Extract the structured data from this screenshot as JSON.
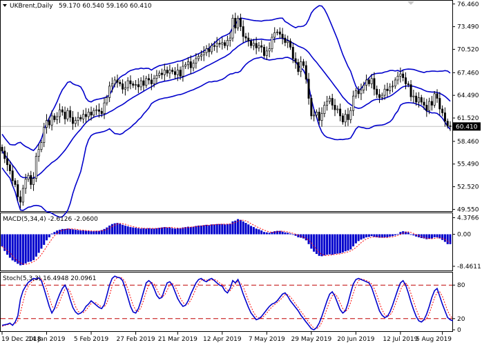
{
  "header": {
    "symbol": "UKBrent,Daily",
    "ohlc": "59.170 60.540 59.160 60.410"
  },
  "current_price_label": "60.410",
  "colors": {
    "band": "#0000cc",
    "candle": "#000000",
    "macd_hist": "#0000cc",
    "macd_signal": "#ff0000",
    "stoch_main": "#0000cc",
    "stoch_signal": "#ff0000",
    "level_line": "#c00000",
    "price_line": "#c0c0c0"
  },
  "chart_data": [
    {
      "type": "candlestick",
      "pane": "price",
      "title": "",
      "ylim": [
        49.5,
        76.8
      ],
      "y_ticks": [
        "76.460",
        "73.490",
        "70.520",
        "67.460",
        "64.490",
        "61.520",
        "58.460",
        "55.490",
        "52.520",
        "49.550"
      ],
      "x_ticks": [
        "19 Dec 2018",
        "14 Jan 2019",
        "5 Feb 2019",
        "27 Feb 2019",
        "21 Mar 2019",
        "12 Apr 2019",
        "7 May 2019",
        "29 May 2019",
        "20 Jun 2019",
        "12 Jul 2019",
        "5 Aug 2019"
      ],
      "last_price": 60.41,
      "closes": [
        57.2,
        56.2,
        55.4,
        54.6,
        53.3,
        52.8,
        51.2,
        50.5,
        52.3,
        53.5,
        54.0,
        52.8,
        53.6,
        56.5,
        57.4,
        58.3,
        60.3,
        61.2,
        60.6,
        61.8,
        61.3,
        61.7,
        62.6,
        62.3,
        61.4,
        62.5,
        61.6,
        60.8,
        61.2,
        61.6,
        61.4,
        62.0,
        61.7,
        62.3,
        61.9,
        62.5,
        62.6,
        62.4,
        62.1,
        63.5,
        64.2,
        65.7,
        66.0,
        66.5,
        66.2,
        66.0,
        65.3,
        65.5,
        66.4,
        66.0,
        65.8,
        65.9,
        65.6,
        66.4,
        65.8,
        66.7,
        66.5,
        66.0,
        66.7,
        67.1,
        67.4,
        67.2,
        67.8,
        67.4,
        67.8,
        67.6,
        67.2,
        67.8,
        67.0,
        68.3,
        68.5,
        68.9,
        68.1,
        68.7,
        69.3,
        69.6,
        69.8,
        70.1,
        70.6,
        70.2,
        71.0,
        70.9,
        71.3,
        71.2,
        71.4,
        71.0,
        71.7,
        72.0,
        74.6,
        73.3,
        74.6,
        73.5,
        72.2,
        72.0,
        71.6,
        71.0,
        71.3,
        70.7,
        71.0,
        70.8,
        69.7,
        70.3,
        70.6,
        72.1,
        72.7,
        72.8,
        72.5,
        72.0,
        71.4,
        71.6,
        70.8,
        69.3,
        68.8,
        67.6,
        68.9,
        68.4,
        66.6,
        64.1,
        61.8,
        61.9,
        62.3,
        61.2,
        62.1,
        63.2,
        63.7,
        64.1,
        63.2,
        62.6,
        62.7,
        61.8,
        61.0,
        62.0,
        61.3,
        62.5,
        64.4,
        65.1,
        64.7,
        65.2,
        65.8,
        66.5,
        66.0,
        66.7,
        65.3,
        64.6,
        64.2,
        64.5,
        65.3,
        65.1,
        65.6,
        65.7,
        66.5,
        67.0,
        67.3,
        66.8,
        66.0,
        65.9,
        64.3,
        64.4,
        63.6,
        64.2,
        63.6,
        63.2,
        62.5,
        63.7,
        63.2,
        64.7,
        64.1,
        62.7,
        62.2,
        61.1,
        60.5,
        60.41
      ]
    },
    {
      "type": "bar",
      "pane": "macd",
      "title": "MACD(5,34,4) -2.6126 -2.0600",
      "ylim": [
        -9.2,
        5.2
      ],
      "y_ticks": [
        "4.3766",
        "0.00",
        "-8.4611"
      ],
      "hist": [
        -3.2,
        -4.4,
        -5.4,
        -6.2,
        -6.9,
        -7.3,
        -7.8,
        -8.2,
        -8.1,
        -7.7,
        -7.3,
        -7.2,
        -6.8,
        -5.9,
        -4.9,
        -3.8,
        -2.8,
        -1.6,
        -0.8,
        0.2,
        0.6,
        1.0,
        1.2,
        1.4,
        1.4,
        1.5,
        1.4,
        1.3,
        1.2,
        1.1,
        1.0,
        1.0,
        0.9,
        0.9,
        0.8,
        0.8,
        0.9,
        0.9,
        1.1,
        1.4,
        1.8,
        2.3,
        2.7,
        2.9,
        3.0,
        2.8,
        2.5,
        2.3,
        2.1,
        1.9,
        1.8,
        1.7,
        1.6,
        1.5,
        1.6,
        1.5,
        1.6,
        1.5,
        1.5,
        1.6,
        1.7,
        1.8,
        1.9,
        1.8,
        1.8,
        1.6,
        1.5,
        1.6,
        1.6,
        1.8,
        1.9,
        2.0,
        1.9,
        2.0,
        2.2,
        2.3,
        2.3,
        2.4,
        2.5,
        2.4,
        2.6,
        2.6,
        2.7,
        2.7,
        2.7,
        2.6,
        2.7,
        2.8,
        3.4,
        3.6,
        4.0,
        3.8,
        3.4,
        3.0,
        2.6,
        2.2,
        1.9,
        1.5,
        1.3,
        1.0,
        0.6,
        0.5,
        0.4,
        0.6,
        0.8,
        0.9,
        0.9,
        0.7,
        0.5,
        0.4,
        0.2,
        -0.1,
        -0.4,
        -0.8,
        -0.9,
        -1.1,
        -1.6,
        -2.6,
        -3.8,
        -4.6,
        -5.2,
        -5.7,
        -5.8,
        -5.6,
        -5.4,
        -5.3,
        -5.4,
        -5.2,
        -5.1,
        -5.0,
        -4.8,
        -4.5,
        -4.3,
        -4.0,
        -3.2,
        -2.4,
        -1.8,
        -1.4,
        -1.1,
        -0.8,
        -0.7,
        -0.5,
        -0.7,
        -0.8,
        -0.9,
        -0.9,
        -0.8,
        -0.8,
        -0.6,
        -0.5,
        -0.3,
        0.1,
        0.6,
        0.8,
        0.7,
        0.5,
        0.0,
        -0.3,
        -0.6,
        -0.8,
        -1.0,
        -1.1,
        -1.3,
        -1.2,
        -1.1,
        -0.8,
        -0.8,
        -1.1,
        -1.5,
        -2.0,
        -2.6,
        -2.6
      ]
    },
    {
      "type": "line",
      "pane": "stochastic",
      "title": "Stoch(5,3,3) 16.4948 20.0961",
      "ylim": [
        0,
        100
      ],
      "y_ticks": [
        "80",
        "20",
        "0"
      ],
      "levels": [
        80,
        20
      ],
      "k": [
        8,
        9,
        10,
        12,
        8,
        14,
        25,
        55,
        70,
        78,
        85,
        88,
        92,
        91,
        93,
        88,
        74,
        58,
        42,
        30,
        38,
        52,
        64,
        74,
        80,
        70,
        54,
        40,
        32,
        28,
        30,
        34,
        42,
        46,
        52,
        48,
        44,
        40,
        38,
        45,
        62,
        80,
        92,
        96,
        94,
        93,
        88,
        74,
        58,
        42,
        32,
        30,
        38,
        52,
        68,
        84,
        88,
        84,
        74,
        62,
        56,
        58,
        72,
        84,
        86,
        80,
        68,
        56,
        48,
        42,
        44,
        52,
        64,
        74,
        84,
        90,
        92,
        88,
        86,
        90,
        92,
        88,
        84,
        80,
        78,
        70,
        66,
        74,
        88,
        84,
        90,
        78,
        64,
        52,
        40,
        30,
        24,
        18,
        20,
        24,
        30,
        36,
        42,
        46,
        48,
        52,
        58,
        64,
        66,
        60,
        52,
        46,
        40,
        34,
        26,
        20,
        14,
        8,
        2,
        0,
        4,
        12,
        24,
        38,
        52,
        64,
        68,
        60,
        48,
        36,
        30,
        34,
        48,
        66,
        82,
        90,
        92,
        90,
        88,
        86,
        84,
        76,
        62,
        48,
        34,
        26,
        22,
        24,
        32,
        44,
        58,
        72,
        84,
        88,
        80,
        66,
        50,
        36,
        24,
        16,
        14,
        18,
        28,
        42,
        58,
        70,
        74,
        60,
        46,
        34,
        22,
        18,
        16
      ],
      "d": [
        6,
        8,
        9,
        10,
        10,
        11,
        16,
        31,
        50,
        68,
        78,
        84,
        88,
        90,
        92,
        91,
        85,
        73,
        58,
        43,
        37,
        40,
        51,
        63,
        73,
        75,
        68,
        55,
        42,
        33,
        30,
        31,
        35,
        41,
        47,
        49,
        48,
        44,
        41,
        41,
        48,
        62,
        78,
        89,
        94,
        94,
        92,
        85,
        73,
        58,
        44,
        35,
        33,
        40,
        53,
        68,
        80,
        85,
        82,
        73,
        64,
        59,
        62,
        71,
        81,
        83,
        78,
        68,
        57,
        49,
        45,
        46,
        53,
        63,
        74,
        83,
        89,
        90,
        89,
        88,
        89,
        90,
        88,
        84,
        81,
        76,
        71,
        70,
        76,
        82,
        87,
        84,
        77,
        65,
        52,
        41,
        31,
        24,
        21,
        21,
        25,
        30,
        36,
        41,
        45,
        49,
        53,
        58,
        63,
        63,
        59,
        53,
        46,
        40,
        33,
        27,
        20,
        14,
        8,
        3,
        2,
        5,
        13,
        25,
        38,
        51,
        61,
        64,
        59,
        48,
        38,
        33,
        37,
        49,
        65,
        79,
        88,
        91,
        90,
        88,
        86,
        82,
        74,
        62,
        48,
        36,
        27,
        24,
        26,
        33,
        45,
        58,
        71,
        81,
        84,
        78,
        65,
        51,
        37,
        25,
        18,
        16,
        20,
        29,
        43,
        57,
        67,
        68,
        60,
        47,
        34,
        25,
        20
      ]
    }
  ]
}
